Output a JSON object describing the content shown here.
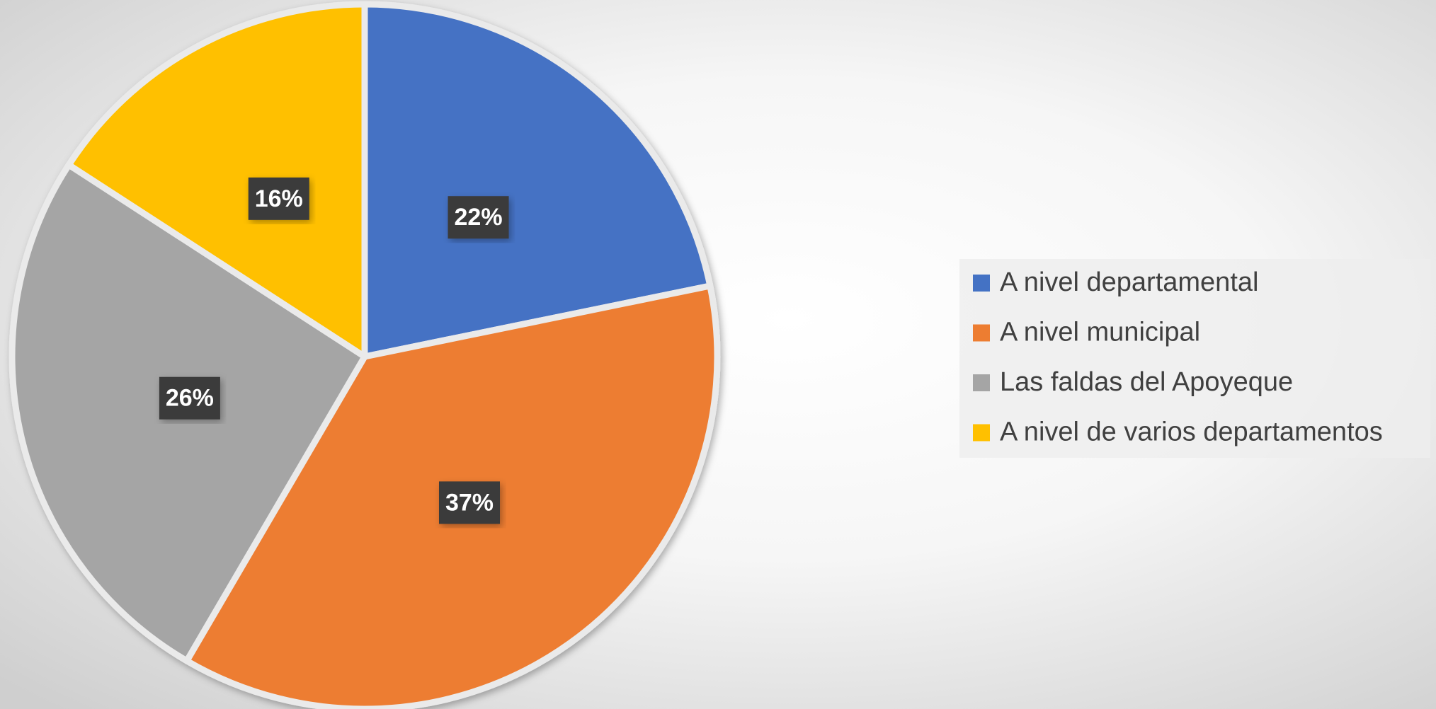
{
  "chart_data": {
    "type": "pie",
    "categories": [
      "A nivel departamental",
      "A nivel municipal",
      "Las faldas del Apoyeque",
      "A nivel de varios departamentos"
    ],
    "values": [
      22,
      37,
      26,
      16
    ],
    "value_labels": [
      "22%",
      "37%",
      "26%",
      "16%"
    ],
    "colors": [
      "#4472c4",
      "#ed7d31",
      "#a5a5a5",
      "#ffc000"
    ],
    "legend": "right"
  }
}
